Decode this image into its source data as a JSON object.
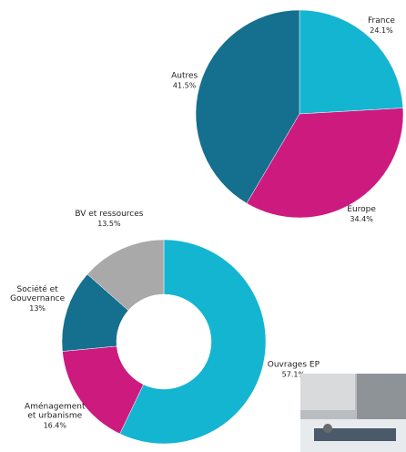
{
  "chart_data": [
    {
      "type": "pie",
      "categories": [
        "France",
        "Europe",
        "Autres"
      ],
      "values": [
        24.1,
        34.4,
        41.5
      ],
      "value_labels": [
        "24.1%",
        "34.4%",
        "41.5%"
      ],
      "colors": [
        "#13b5d1",
        "#cc1a7f",
        "#156f8f"
      ]
    },
    {
      "type": "donut",
      "categories": [
        "Ouvrages EP",
        "Aménagement\net urbanisme",
        "Société et\nGouvernance",
        "BV et ressources"
      ],
      "values": [
        57.1,
        16.4,
        13,
        13.5
      ],
      "value_labels": [
        "57.1%",
        "16.4%",
        "13%",
        "13.5%"
      ],
      "colors": [
        "#13b5d1",
        "#cc1a7f",
        "#156f8f",
        "#a9a9a9"
      ]
    }
  ]
}
